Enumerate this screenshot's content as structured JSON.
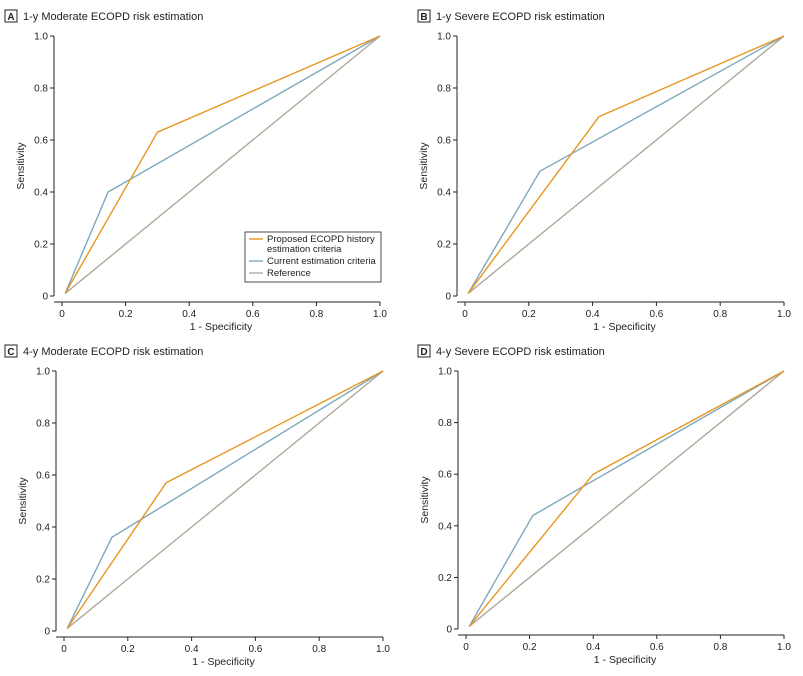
{
  "colors": {
    "proposed": "#e8961f",
    "current": "#7fa8be",
    "reference": "#b0a898"
  },
  "legend": {
    "proposed_lines": [
      "Proposed ECOPD history",
      "estimation criteria"
    ],
    "current_lines": [
      "Current estimation criteria"
    ],
    "reference_lines": [
      "Reference"
    ]
  },
  "chart_data": [
    {
      "type": "line",
      "panel": "A",
      "title": "1-y Moderate ECOPD risk estimation",
      "xlabel": "1 - Specificity",
      "ylabel": "Sensitivity",
      "xlim": [
        0,
        1.0
      ],
      "ylim": [
        0,
        1.0
      ],
      "xticks": [
        "0",
        "0.2",
        "0.4",
        "0.6",
        "0.8",
        "1.0"
      ],
      "yticks": [
        "0",
        "0.2",
        "0.4",
        "0.6",
        "0.8",
        "1.0"
      ],
      "legend": "bottom-right",
      "series": [
        {
          "name": "Proposed ECOPD history estimation criteria",
          "key": "proposed",
          "x": [
            0.01,
            0.3,
            1.0
          ],
          "y": [
            0.01,
            0.63,
            1.0
          ]
        },
        {
          "name": "Current estimation criteria",
          "key": "current",
          "x": [
            0.01,
            0.145,
            1.0
          ],
          "y": [
            0.01,
            0.4,
            1.0
          ]
        },
        {
          "name": "Reference",
          "key": "reference",
          "x": [
            0.01,
            1.0
          ],
          "y": [
            0.01,
            1.0
          ]
        }
      ]
    },
    {
      "type": "line",
      "panel": "B",
      "title": "1-y Severe ECOPD risk estimation",
      "xlabel": "1 - Specificity",
      "ylabel": "Sensitivity",
      "xlim": [
        0,
        1.0
      ],
      "ylim": [
        0,
        1.0
      ],
      "xticks": [
        "0",
        "0.2",
        "0.4",
        "0.6",
        "0.8",
        "1.0"
      ],
      "yticks": [
        "0",
        "0.2",
        "0.4",
        "0.6",
        "0.8",
        "1.0"
      ],
      "legend": "none",
      "series": [
        {
          "name": "Proposed ECOPD history estimation criteria",
          "key": "proposed",
          "x": [
            0.01,
            0.42,
            1.0
          ],
          "y": [
            0.01,
            0.69,
            1.0
          ]
        },
        {
          "name": "Current estimation criteria",
          "key": "current",
          "x": [
            0.01,
            0.235,
            1.0
          ],
          "y": [
            0.01,
            0.48,
            1.0
          ]
        },
        {
          "name": "Reference",
          "key": "reference",
          "x": [
            0.01,
            1.0
          ],
          "y": [
            0.01,
            1.0
          ]
        }
      ]
    },
    {
      "type": "line",
      "panel": "C",
      "title": "4-y Moderate ECOPD risk estimation",
      "xlabel": "1 - Specificity",
      "ylabel": "Sensitivity",
      "xlim": [
        0,
        1.0
      ],
      "ylim": [
        0,
        1.0
      ],
      "xticks": [
        "0",
        "0.2",
        "0.4",
        "0.6",
        "0.8",
        "1.0"
      ],
      "yticks": [
        "0",
        "0.2",
        "0.4",
        "0.6",
        "0.8",
        "1.0"
      ],
      "legend": "none",
      "series": [
        {
          "name": "Proposed ECOPD history estimation criteria",
          "key": "proposed",
          "x": [
            0.01,
            0.32,
            1.0
          ],
          "y": [
            0.01,
            0.57,
            1.0
          ]
        },
        {
          "name": "Current estimation criteria",
          "key": "current",
          "x": [
            0.01,
            0.15,
            1.0
          ],
          "y": [
            0.01,
            0.36,
            1.0
          ]
        },
        {
          "name": "Reference",
          "key": "reference",
          "x": [
            0.01,
            1.0
          ],
          "y": [
            0.01,
            1.0
          ]
        }
      ]
    },
    {
      "type": "line",
      "panel": "D",
      "title": "4-y Severe ECOPD risk estimation",
      "xlabel": "1 - Specificity",
      "ylabel": "Sensitivity",
      "xlim": [
        0,
        1.0
      ],
      "ylim": [
        0,
        1.0
      ],
      "xticks": [
        "0",
        "0.2",
        "0.4",
        "0.6",
        "0.8",
        "1.0"
      ],
      "yticks": [
        "0",
        "0.2",
        "0.4",
        "0.6",
        "0.8",
        "1.0"
      ],
      "legend": "none",
      "series": [
        {
          "name": "Proposed ECOPD history estimation criteria",
          "key": "proposed",
          "x": [
            0.01,
            0.4,
            1.0
          ],
          "y": [
            0.01,
            0.6,
            1.0
          ]
        },
        {
          "name": "Current estimation criteria",
          "key": "current",
          "x": [
            0.01,
            0.21,
            1.0
          ],
          "y": [
            0.01,
            0.44,
            1.0
          ]
        },
        {
          "name": "Reference",
          "key": "reference",
          "x": [
            0.01,
            1.0
          ],
          "y": [
            0.01,
            1.0
          ]
        }
      ]
    }
  ]
}
